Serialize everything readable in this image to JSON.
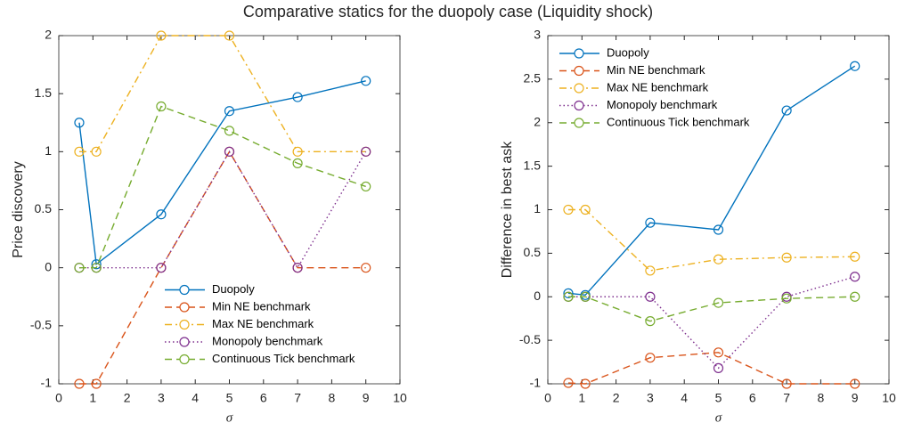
{
  "title": "Comparative statics for the duopoly case (Liquidity shock)",
  "chart_data": [
    {
      "type": "line",
      "xlabel": "σ",
      "ylabel": "Price discovery",
      "x": [
        0.6,
        1.1,
        3,
        5,
        7,
        9
      ],
      "xlim": [
        0,
        10
      ],
      "xticks": [
        0,
        1,
        2,
        3,
        4,
        5,
        6,
        7,
        8,
        9,
        10
      ],
      "ylim": [
        -1,
        2
      ],
      "yticks": [
        -1,
        -0.5,
        0,
        0.5,
        1,
        1.5,
        2
      ],
      "legend": "southeast",
      "series": [
        {
          "name": "Duopoly",
          "color": "#0072BD",
          "dash": "solid",
          "values": [
            1.25,
            0.03,
            0.46,
            1.35,
            1.47,
            1.61
          ]
        },
        {
          "name": "Min NE benchmark",
          "color": "#D95319",
          "dash": "dashed",
          "values": [
            -1,
            -1,
            0,
            1,
            0,
            0
          ]
        },
        {
          "name": "Max NE benchmark",
          "color": "#EDB120",
          "dash": "dashdot",
          "values": [
            1,
            1,
            2,
            2,
            1,
            1
          ]
        },
        {
          "name": "Monopoly benchmark",
          "color": "#7E2F8E",
          "dash": "dotted",
          "values": [
            0,
            0,
            0,
            1,
            0,
            1
          ]
        },
        {
          "name": "Continuous Tick benchmark",
          "color": "#77AC30",
          "dash": "dashed",
          "values": [
            0,
            0,
            1.39,
            1.18,
            0.9,
            0.7
          ]
        }
      ]
    },
    {
      "type": "line",
      "xlabel": "σ",
      "ylabel": "Difference in best ask",
      "x": [
        0.6,
        1.1,
        3,
        5,
        7,
        9
      ],
      "xlim": [
        0,
        10
      ],
      "xticks": [
        0,
        1,
        2,
        3,
        4,
        5,
        6,
        7,
        8,
        9,
        10
      ],
      "ylim": [
        -1,
        3
      ],
      "yticks": [
        -1,
        -0.5,
        0,
        0.5,
        1,
        1.5,
        2,
        2.5,
        3
      ],
      "legend": "northwest",
      "series": [
        {
          "name": "Duopoly",
          "color": "#0072BD",
          "dash": "solid",
          "values": [
            0.04,
            0.02,
            0.85,
            0.77,
            2.14,
            2.65
          ]
        },
        {
          "name": "Min NE benchmark",
          "color": "#D95319",
          "dash": "dashed",
          "values": [
            -0.99,
            -1,
            -0.7,
            -0.64,
            -1,
            -1
          ]
        },
        {
          "name": "Max NE benchmark",
          "color": "#EDB120",
          "dash": "dashdot",
          "values": [
            1,
            1,
            0.3,
            0.43,
            0.45,
            0.46
          ]
        },
        {
          "name": "Monopoly benchmark",
          "color": "#7E2F8E",
          "dash": "dotted",
          "values": [
            0,
            0,
            0,
            -0.82,
            0,
            0.23
          ]
        },
        {
          "name": "Continuous Tick benchmark",
          "color": "#77AC30",
          "dash": "dashed",
          "values": [
            0,
            0,
            -0.28,
            -0.07,
            -0.02,
            0
          ]
        }
      ]
    }
  ]
}
